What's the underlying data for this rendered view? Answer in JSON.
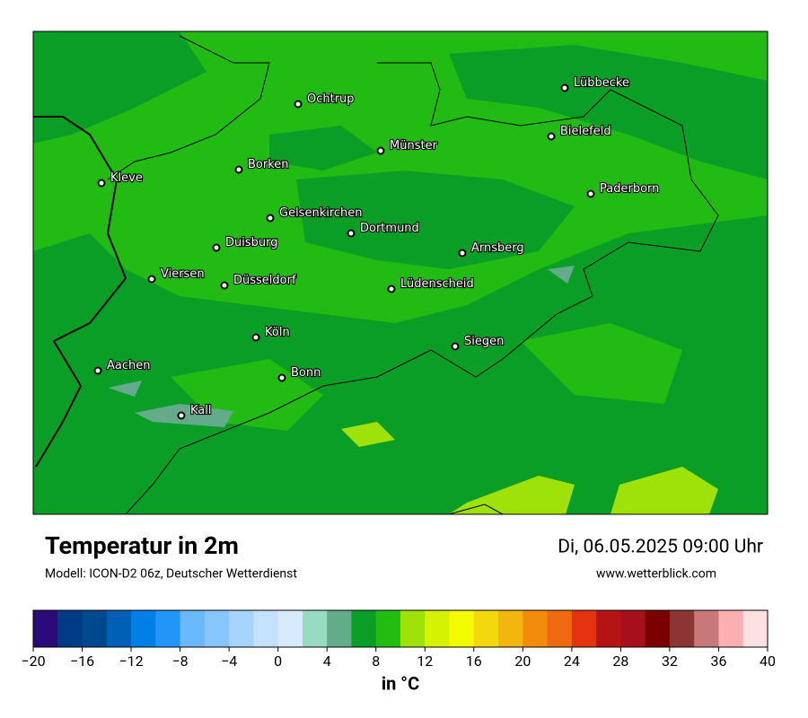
{
  "title": "Temperatur in 2m",
  "subtitle": "Modell: ICON-D2 06z, Deutscher Wetterdienst",
  "datetime": "Di, 06.05.2025 09:00 Uhr",
  "website": "www.wetterblick.com",
  "cities": [
    "Lübbecke",
    "Ochtrup",
    "Bielefeld",
    "Münster",
    "Borken",
    "Kleve",
    "Paderborn",
    "Gelsenkirchen",
    "Dortmund",
    "Duisburg",
    "Arnsberg",
    "Viersen",
    "Düsseldorf",
    "Lüdenscheid",
    "Köln",
    "Siegen",
    "Aachen",
    "Bonn",
    "Kall"
  ],
  "colorbar": {
    "lim": [
      -20,
      40
    ],
    "unit_label": "in °C",
    "colors": [
      "#2b0a7a",
      "#013a85",
      "#004990",
      "#0060b5",
      "#0080e6",
      "#2196f8",
      "#6ab8fd",
      "#86c5fd",
      "#a6d4fd",
      "#c4e2fd",
      "#d8eafd",
      "#96dcc0",
      "#63ab8a",
      "#0a9e27",
      "#22bc12",
      "#9ee20a",
      "#d6f204",
      "#f2fb00",
      "#f4d80e",
      "#f2b60e",
      "#f28a0c",
      "#ee6a0e",
      "#e4330e",
      "#b51414",
      "#a6101c",
      "#7b0000",
      "#8b3535",
      "#c87878",
      "#fbb0b0",
      "#fde0e0"
    ],
    "ticks": [
      {
        "value": -20,
        "label": "−20"
      },
      {
        "value": -16,
        "label": "−16"
      },
      {
        "value": -12,
        "label": "−12"
      },
      {
        "value": -8,
        "label": "−8"
      },
      {
        "value": -4,
        "label": "−4"
      },
      0,
      4,
      8,
      12,
      16,
      20,
      24,
      28,
      32,
      36,
      40
    ]
  }
}
